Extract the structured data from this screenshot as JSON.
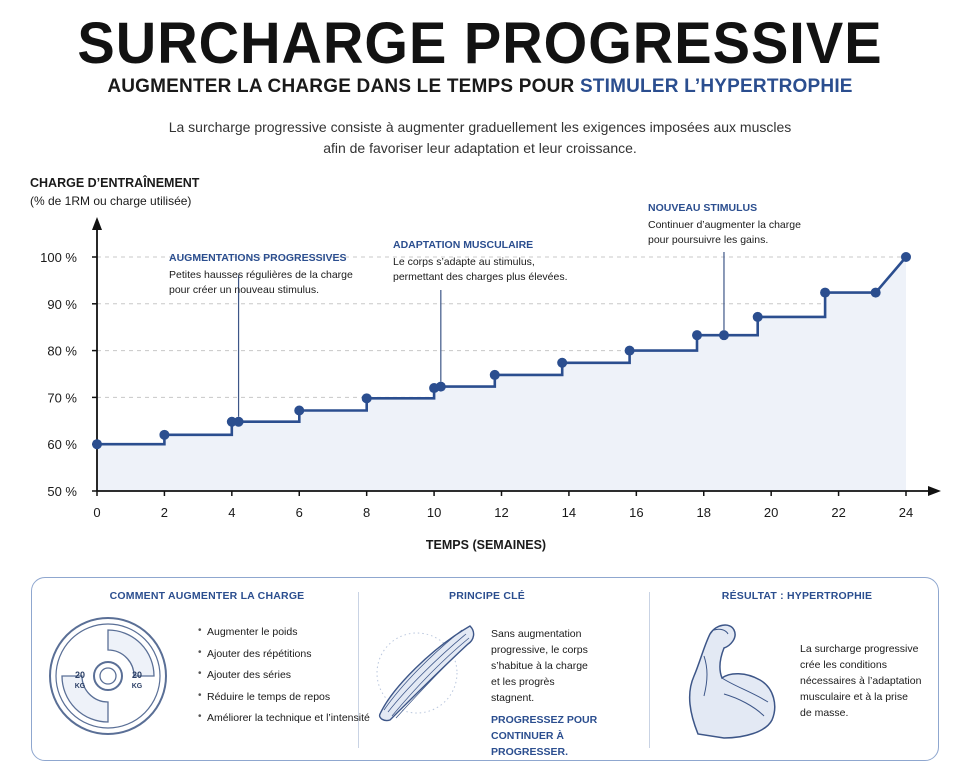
{
  "header": {
    "title": "SURCHARGE PROGRESSIVE",
    "subtitle_main": "AUGMENTER LA CHARGE DANS LE TEMPS POUR",
    "subtitle_accent": "STIMULER L’HYPERTROPHIE",
    "intro_line1": "La surcharge progressive consiste à augmenter graduellement les exigences imposées aux muscles",
    "intro_line2": "afin de favoriser leur adaptation et leur croissance."
  },
  "colors": {
    "accent": "#2b4e8f",
    "line": "#2b4e8f",
    "area_fill": "#eef2f9",
    "grid": "#c8c8c8"
  },
  "chart_data": {
    "type": "line",
    "ylabel": "CHARGE D’ENTRAÎNEMENT",
    "ylabel_sub": "(% de 1RM ou charge utilisée)",
    "xlabel": "TEMPS (SEMAINES)",
    "xlim": [
      0,
      24
    ],
    "ylim": [
      50,
      100
    ],
    "x_ticks": [
      "0",
      "2",
      "4",
      "6",
      "8",
      "10",
      "12",
      "14",
      "16",
      "18",
      "20",
      "22",
      "24"
    ],
    "y_ticks": [
      "50 %",
      "60 %",
      "70 %",
      "80 %",
      "90 %",
      "100 %"
    ],
    "grid": "horizontal dashed",
    "step_path": [
      [
        0,
        60
      ],
      [
        2,
        60
      ],
      [
        2,
        62
      ],
      [
        4,
        62
      ],
      [
        4,
        64.8
      ],
      [
        6,
        64.8
      ],
      [
        6,
        67.2
      ],
      [
        8,
        67.2
      ],
      [
        8,
        69.8
      ],
      [
        10,
        69.8
      ],
      [
        10,
        72
      ],
      [
        10.2,
        72.3
      ],
      [
        11.8,
        72.3
      ],
      [
        11.8,
        74.8
      ],
      [
        13.8,
        74.8
      ],
      [
        13.8,
        77.4
      ],
      [
        15.8,
        77.4
      ],
      [
        15.8,
        80
      ],
      [
        17.8,
        80
      ],
      [
        17.8,
        83.3
      ],
      [
        18.6,
        83.3
      ],
      [
        19.6,
        83.3
      ],
      [
        19.6,
        87.2
      ],
      [
        21.6,
        87.2
      ],
      [
        21.6,
        92.4
      ],
      [
        23.1,
        92.4
      ],
      [
        24,
        100
      ]
    ],
    "points": [
      [
        0,
        60
      ],
      [
        2,
        62
      ],
      [
        4,
        64.8
      ],
      [
        4.2,
        64.8
      ],
      [
        6,
        67.2
      ],
      [
        8,
        69.8
      ],
      [
        10,
        72
      ],
      [
        10.2,
        72.3
      ],
      [
        11.8,
        74.8
      ],
      [
        13.8,
        77.4
      ],
      [
        15.8,
        80
      ],
      [
        17.8,
        83.3
      ],
      [
        18.6,
        83.3
      ],
      [
        19.6,
        87.2
      ],
      [
        21.6,
        92.4
      ],
      [
        23.1,
        92.4
      ],
      [
        24,
        100
      ]
    ],
    "annotations": [
      {
        "title": "AUGMENTATIONS PROGRESSIVES",
        "line1": "Petites hausses régulières de la charge",
        "line2": "pour créer un nouveau stimulus.",
        "x": 4.2,
        "y": 64.8
      },
      {
        "title": "ADAPTATION MUSCULAIRE",
        "line1": "Le corps s’adapte au stimulus,",
        "line2": "permettant des charges plus élevées.",
        "x": 10.2,
        "y": 72.3
      },
      {
        "title": "NOUVEAU STIMULUS",
        "line1": "Continuer d’augmenter la charge",
        "line2": "pour poursuivre les gains.",
        "x": 18.6,
        "y": 83.3
      }
    ]
  },
  "panel": {
    "left": {
      "heading": "COMMENT AUGMENTER LA CHARGE",
      "plate_label_left_1": "20",
      "plate_label_left_2": "KG",
      "plate_label_right_1": "20",
      "plate_label_right_2": "KG",
      "items": [
        "Augmenter le poids",
        "Ajouter des répétitions",
        "Ajouter des séries",
        "Réduire le temps de repos",
        "Améliorer la technique et l’intensité"
      ]
    },
    "middle": {
      "heading": "PRINCIPE CLÉ",
      "line1": "Sans augmentation",
      "line2": "progressive, le corps",
      "line3": "s’habitue à la charge",
      "line4": "et les progrès",
      "line5": "stagnent.",
      "strong1": "PROGRESSEZ POUR",
      "strong2": "CONTINUER À PROGRESSER."
    },
    "right": {
      "heading": "RÉSULTAT : HYPERTROPHIE",
      "line1": "La surcharge progressive",
      "line2": "crée les conditions",
      "line3": "nécessaires à l’adaptation",
      "line4": "musculaire et à la prise",
      "line5": "de masse."
    }
  }
}
